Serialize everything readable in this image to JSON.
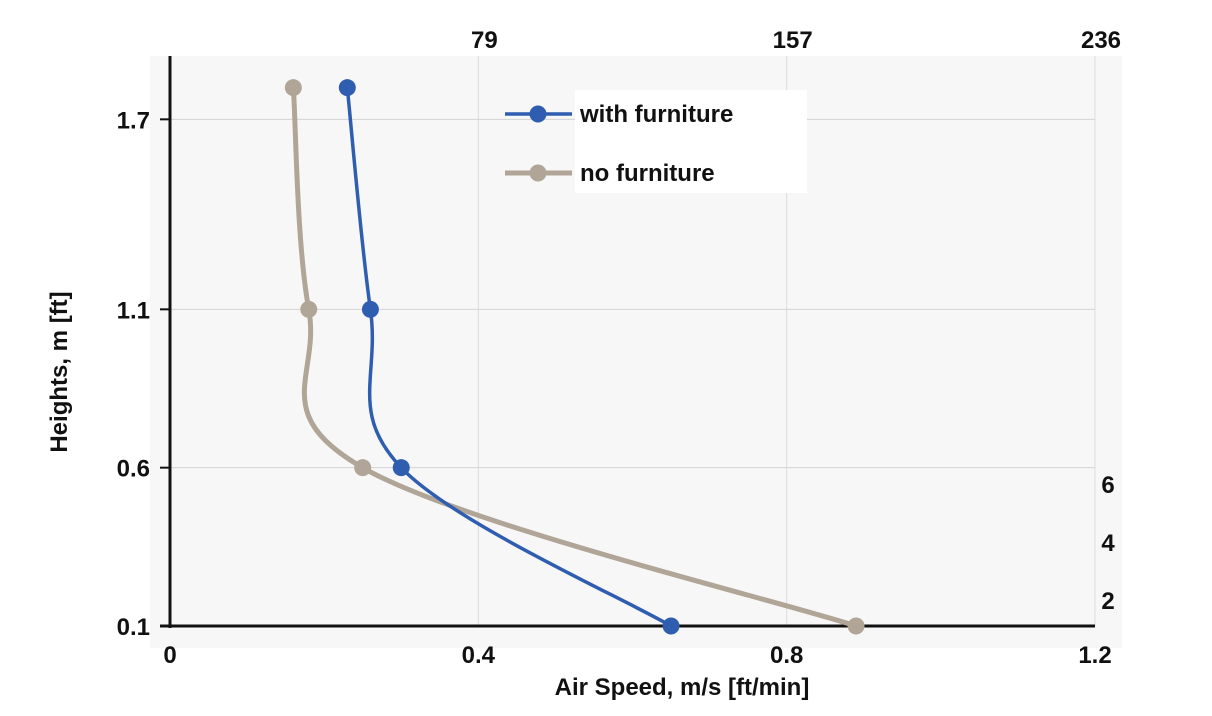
{
  "chart_data": {
    "type": "line",
    "xlabel": "Air Speed, m/s [ft/min]",
    "ylabel": "Heights, m [ft]",
    "xlim": [
      0,
      1.2
    ],
    "ylim": [
      0.1,
      1.9
    ],
    "x_ticks": [
      0,
      0.4,
      0.8,
      1.2
    ],
    "x_tick_labels": [
      "0",
      "0.4",
      "0.8",
      "1.2"
    ],
    "y_ticks": [
      0.1,
      0.6,
      1.1,
      1.7
    ],
    "y_tick_labels": [
      "0.1",
      "0.6",
      "1.1",
      "1.7"
    ],
    "top_axis": {
      "label_values_m_s": [
        0.4,
        0.8,
        1.2
      ],
      "labels": [
        "79",
        "157",
        "236"
      ]
    },
    "right_axis": {
      "label_values_m": [
        0.6,
        1.2,
        1.8
      ],
      "labels": [
        "2",
        "4",
        "6"
      ]
    },
    "grid": true,
    "legend_position": "top-center",
    "series": [
      {
        "name": "with furniture",
        "color": "#2f5db0",
        "points": [
          [
            0.65,
            0.1
          ],
          [
            0.3,
            0.6
          ],
          [
            0.26,
            1.1
          ],
          [
            0.23,
            1.8
          ]
        ]
      },
      {
        "name": "no furniture",
        "color": "#b0a597",
        "points": [
          [
            0.89,
            0.1
          ],
          [
            0.25,
            0.6
          ],
          [
            0.18,
            1.1
          ],
          [
            0.16,
            1.8
          ]
        ]
      }
    ]
  }
}
